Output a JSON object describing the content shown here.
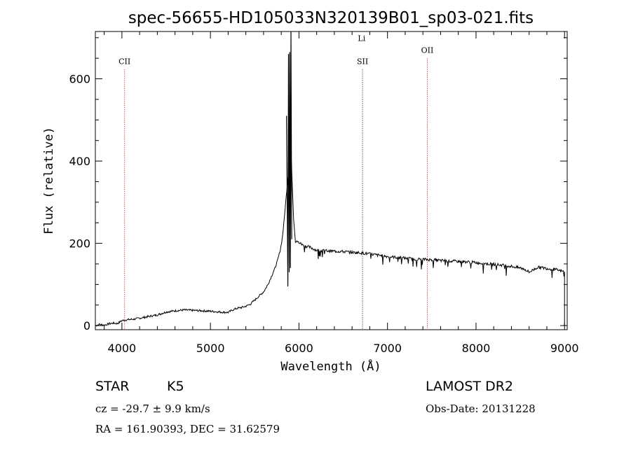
{
  "chart_data": {
    "type": "line",
    "title": "spec-56655-HD105033N320139B01_sp03-021.fits",
    "xlabel": "Wavelength (Å)",
    "ylabel": "Flux (relative)",
    "xlim": [
      3700,
      9030
    ],
    "ylim": [
      -10,
      715
    ],
    "xticks": [
      4000,
      5000,
      6000,
      7000,
      8000,
      9000
    ],
    "yticks": [
      0,
      200,
      400,
      600
    ],
    "line_color": "#000000",
    "marker_color": "#cc0000",
    "series": [
      {
        "x": [
          3700,
          3750,
          3800,
          3850,
          3900,
          3950,
          4000,
          4050,
          4100,
          4150,
          4200,
          4300,
          4400,
          4500,
          4600,
          4700,
          4800,
          4900,
          5000,
          5100,
          5200,
          5250,
          5300,
          5350,
          5400,
          5450,
          5500,
          5550,
          5600,
          5650,
          5700,
          5730,
          5760,
          5790,
          5810,
          5830,
          5850,
          5880,
          5910,
          5940,
          5960,
          6000,
          6050,
          6100,
          6150,
          6200,
          6300,
          6400,
          6500,
          6600,
          6700,
          6800,
          6900,
          7000,
          7100,
          7200,
          7300,
          7400,
          7500,
          7600,
          7700,
          7800,
          7900,
          8000,
          8100,
          8200,
          8300,
          8400,
          8500,
          8550,
          8600,
          8700,
          8800,
          8900,
          8950,
          9000
        ],
        "y": [
          0,
          3,
          1,
          4,
          6,
          5,
          12,
          14,
          15,
          16,
          18,
          22,
          26,
          33,
          36,
          38,
          37,
          36,
          35,
          33,
          32,
          38,
          42,
          44,
          47,
          52,
          62,
          72,
          82,
          100,
          125,
          140,
          160,
          185,
          210,
          250,
          300,
          370,
          420,
          260,
          205,
          202,
          195,
          192,
          188,
          183,
          182,
          181,
          180,
          178,
          177,
          174,
          171,
          168,
          166,
          164,
          162,
          161,
          160,
          158,
          157,
          156,
          155,
          153,
          151,
          149,
          147,
          144,
          140,
          137,
          130,
          142,
          139,
          136,
          133,
          131
        ]
      }
    ],
    "absorption_spikes": [
      {
        "x": 5860,
        "y": 510
      },
      {
        "x": 5875,
        "y": 95
      },
      {
        "x": 5882,
        "y": 660
      },
      {
        "x": 5890,
        "y": 130
      },
      {
        "x": 5896,
        "y": 665
      },
      {
        "x": 5903,
        "y": 140
      },
      {
        "x": 5910,
        "y": 715
      },
      {
        "x": 5918,
        "y": 210
      }
    ],
    "line_markers": [
      {
        "label": "CII",
        "x": 4030,
        "label_y": 636
      },
      {
        "label": "SII",
        "x": 6718,
        "label_y": 636
      },
      {
        "label": "Li",
        "x": 6708,
        "label_y": 692
      },
      {
        "label": "OII",
        "x": 7450,
        "label_y": 663
      }
    ]
  },
  "info": {
    "object_class": "STAR",
    "subclass": "K5",
    "survey": "LAMOST DR2",
    "redshift": "cz = -29.7 ± 9.9 km/s",
    "obs_date": "Obs-Date: 20131228",
    "coords": "RA = 161.90393, DEC =  31.62579"
  }
}
